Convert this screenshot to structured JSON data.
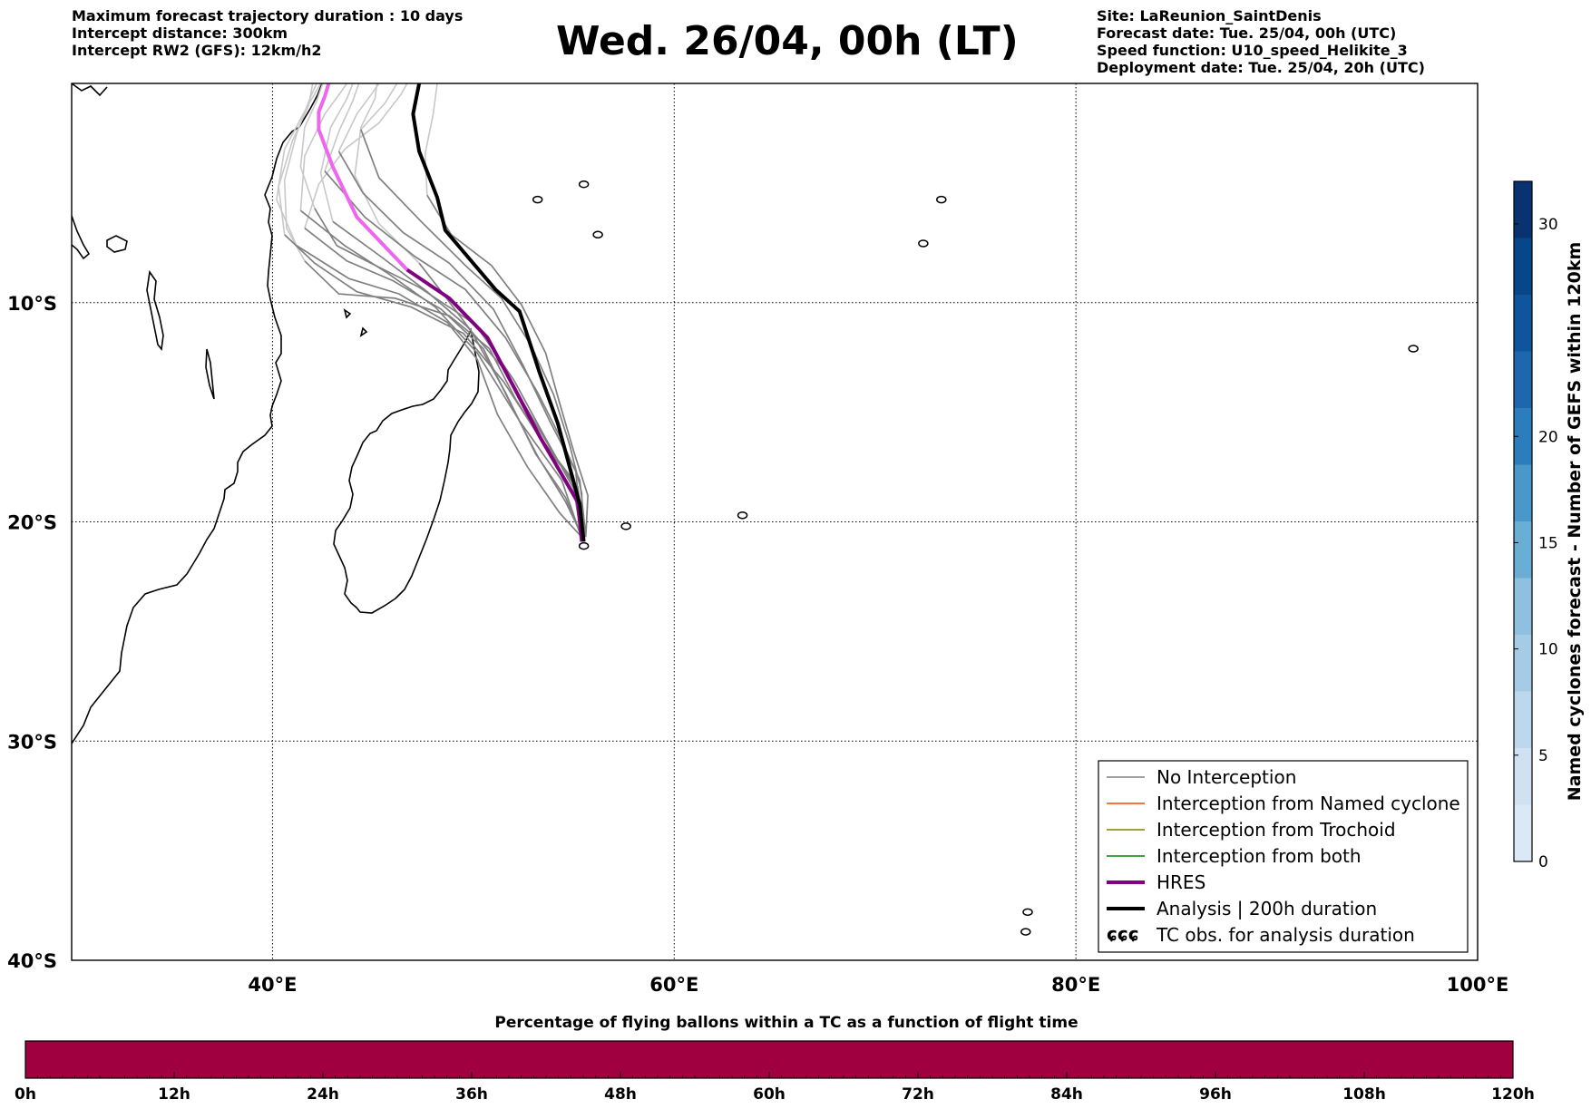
{
  "header": {
    "left_lines": [
      "Maximum forecast trajectory duration : 10 days",
      "Intercept distance: 300km",
      "Intercept RW2 (GFS):  12km/h2"
    ],
    "title": "Wed. 26/04, 00h (LT)",
    "right_lines": [
      "Site: LaReunion_SaintDenis",
      "Forecast date: Tue. 25/04, 00h (UTC)",
      "Speed function: U10_speed_Helikite_3",
      "Deployment date: Tue. 25/04, 20h (UTC)"
    ]
  },
  "map": {
    "lon_range": [
      30,
      100
    ],
    "lat_range": [
      0,
      -40
    ],
    "lon_ticks": [
      {
        "value": 40,
        "label": "40°E"
      },
      {
        "value": 60,
        "label": "60°E"
      },
      {
        "value": 80,
        "label": "80°E"
      },
      {
        "value": 100,
        "label": "100°E"
      }
    ],
    "lat_ticks": [
      {
        "value": -10,
        "label": "10°S"
      },
      {
        "value": -20,
        "label": "20°S"
      },
      {
        "value": -30,
        "label": "30°S"
      },
      {
        "value": -40,
        "label": "40°S"
      }
    ],
    "grid": true,
    "colors": {
      "no_interception": "#808080",
      "ensemble_faded": "#c8c8c8",
      "hres": "#800080",
      "hres_extension": "#ee66ee",
      "analysis": "#000000",
      "interception_named_cyclone": "#ff4500",
      "interception_trochoid": "#808000",
      "interception_both": "#008000"
    },
    "trajectories": {
      "analysis": [
        [
          55.5,
          -20.9
        ],
        [
          55.3,
          -19.2
        ],
        [
          54.2,
          -15.5
        ],
        [
          53.3,
          -13.2
        ],
        [
          52.3,
          -10.4
        ],
        [
          51.1,
          -9.4
        ],
        [
          48.6,
          -6.7
        ],
        [
          48.2,
          -5.2
        ],
        [
          47.3,
          -3.1
        ],
        [
          47.0,
          -1.4
        ],
        [
          47.3,
          0
        ]
      ],
      "hres": [
        [
          55.4,
          -20.9
        ],
        [
          55.2,
          -19.1
        ],
        [
          53.3,
          -16.1
        ],
        [
          52.1,
          -14.0
        ],
        [
          50.7,
          -11.6
        ],
        [
          48.8,
          -9.8
        ],
        [
          46.7,
          -8.5
        ]
      ],
      "hres_extension": [
        [
          46.7,
          -8.5
        ],
        [
          44.2,
          -6.1
        ],
        [
          43.0,
          -3.8
        ],
        [
          42.3,
          -2.1
        ],
        [
          42.3,
          -1.3
        ],
        [
          42.6,
          -0.6
        ],
        [
          42.8,
          0
        ]
      ],
      "ensemble": [
        [
          [
            55.4,
            -20.8
          ],
          [
            55.0,
            -18.5
          ],
          [
            53.6,
            -16.2
          ],
          [
            52.0,
            -13.5
          ],
          [
            50.1,
            -11.0
          ],
          [
            47.3,
            -9.3
          ],
          [
            44.9,
            -8.2
          ],
          [
            43.2,
            -7.4
          ],
          [
            42.1,
            -5.7
          ]
        ],
        [
          [
            55.5,
            -20.6
          ],
          [
            55.2,
            -18.4
          ],
          [
            53.6,
            -16.6
          ],
          [
            52.1,
            -14.4
          ],
          [
            50.8,
            -12.1
          ],
          [
            48.8,
            -10.6
          ],
          [
            46.1,
            -9.8
          ],
          [
            43.3,
            -9.6
          ],
          [
            41.6,
            -8.1
          ]
        ],
        [
          [
            55.4,
            -20.7
          ],
          [
            54.9,
            -18.0
          ],
          [
            53.2,
            -16.0
          ],
          [
            51.5,
            -13.6
          ],
          [
            49.5,
            -11.4
          ],
          [
            46.9,
            -10.2
          ],
          [
            44.2,
            -9.5
          ],
          [
            42.1,
            -8.2
          ],
          [
            40.6,
            -6.9
          ]
        ],
        [
          [
            55.3,
            -20.5
          ],
          [
            54.4,
            -18.1
          ],
          [
            52.3,
            -15.4
          ],
          [
            50.2,
            -12.3
          ],
          [
            48.1,
            -10.2
          ],
          [
            45.8,
            -8.7
          ],
          [
            43.6,
            -7.4
          ],
          [
            41.4,
            -5.8
          ]
        ],
        [
          [
            55.6,
            -20.7
          ],
          [
            55.3,
            -18.1
          ],
          [
            54.3,
            -16.1
          ],
          [
            53.2,
            -14.1
          ],
          [
            51.6,
            -11.6
          ],
          [
            49.6,
            -9.4
          ],
          [
            47.1,
            -7.9
          ],
          [
            44.6,
            -6.1
          ],
          [
            42.6,
            -4.0
          ]
        ],
        [
          [
            55.5,
            -20.8
          ],
          [
            54.3,
            -19.6
          ],
          [
            52.7,
            -17.5
          ],
          [
            51.2,
            -15.1
          ],
          [
            50.2,
            -12.6
          ],
          [
            48.7,
            -10.9
          ],
          [
            46.3,
            -9.6
          ],
          [
            43.8,
            -8.9
          ],
          [
            41.2,
            -7.4
          ]
        ],
        [
          [
            55.4,
            -20.6
          ],
          [
            55.4,
            -18.7
          ],
          [
            54.8,
            -16.5
          ],
          [
            54.0,
            -14.2
          ],
          [
            52.9,
            -12.0
          ],
          [
            51.4,
            -9.8
          ],
          [
            49.6,
            -8.3
          ],
          [
            47.4,
            -6.3
          ],
          [
            45.3,
            -4.3
          ],
          [
            44.4,
            -2.1
          ]
        ],
        [
          [
            55.5,
            -20.5
          ],
          [
            55.0,
            -18.3
          ],
          [
            54.0,
            -16.9
          ],
          [
            52.7,
            -14.9
          ],
          [
            51.5,
            -13.0
          ],
          [
            49.7,
            -11.1
          ],
          [
            47.7,
            -9.5
          ],
          [
            45.4,
            -7.9
          ],
          [
            43.0,
            -6.3
          ]
        ],
        [
          [
            55.4,
            -20.7
          ],
          [
            55.1,
            -17.7
          ],
          [
            53.8,
            -15.4
          ],
          [
            52.5,
            -12.9
          ],
          [
            51.0,
            -10.3
          ],
          [
            48.8,
            -8.2
          ],
          [
            46.5,
            -6.8
          ],
          [
            44.5,
            -5.0
          ],
          [
            43.3,
            -3.1
          ]
        ],
        [
          [
            55.6,
            -20.6
          ],
          [
            55.7,
            -18.8
          ],
          [
            55.0,
            -16.8
          ],
          [
            54.3,
            -14.6
          ],
          [
            53.6,
            -12.3
          ],
          [
            52.4,
            -10.1
          ],
          [
            50.9,
            -8.3
          ],
          [
            48.9,
            -6.9
          ],
          [
            47.7,
            -5.1
          ]
        ],
        [
          [
            55.5,
            -20.8
          ],
          [
            54.6,
            -19.1
          ],
          [
            53.2,
            -17.0
          ],
          [
            51.9,
            -14.7
          ],
          [
            50.5,
            -12.1
          ],
          [
            48.4,
            -10.3
          ],
          [
            46.0,
            -9.0
          ],
          [
            43.7,
            -8.1
          ],
          [
            41.6,
            -6.6
          ]
        ],
        [
          [
            55.4,
            -20.7
          ],
          [
            54.6,
            -18.9
          ],
          [
            53.1,
            -16.9
          ],
          [
            51.6,
            -14.1
          ],
          [
            49.9,
            -11.3
          ],
          [
            48.5,
            -9.6
          ],
          [
            47.3,
            -8.2
          ]
        ]
      ],
      "faded": [
        [
          [
            42.1,
            -5.7
          ],
          [
            41.4,
            -3.8
          ],
          [
            41.6,
            -2.0
          ],
          [
            42.2,
            -0.8
          ],
          [
            42.5,
            0
          ]
        ],
        [
          [
            41.6,
            -8.1
          ],
          [
            40.7,
            -6.6
          ],
          [
            40.6,
            -4.4
          ],
          [
            41.2,
            -2.3
          ],
          [
            41.9,
            -0.6
          ],
          [
            42.2,
            0
          ]
        ],
        [
          [
            40.6,
            -6.9
          ],
          [
            40.3,
            -4.7
          ],
          [
            41.0,
            -2.6
          ],
          [
            41.8,
            -1.0
          ],
          [
            42.0,
            0
          ]
        ],
        [
          [
            41.4,
            -5.8
          ],
          [
            41.6,
            -3.3
          ],
          [
            42.6,
            -1.4
          ],
          [
            43.4,
            -0.4
          ],
          [
            43.7,
            0
          ]
        ],
        [
          [
            42.6,
            -4.0
          ],
          [
            43.3,
            -2.2
          ],
          [
            44.0,
            -0.8
          ],
          [
            44.3,
            0
          ]
        ],
        [
          [
            41.2,
            -7.4
          ],
          [
            40.2,
            -5.3
          ],
          [
            40.6,
            -3.0
          ],
          [
            41.7,
            -1.1
          ],
          [
            42.4,
            0
          ]
        ],
        [
          [
            44.4,
            -2.1
          ],
          [
            45.6,
            -0.9
          ],
          [
            46.2,
            0
          ]
        ],
        [
          [
            43.0,
            -6.3
          ],
          [
            42.4,
            -4.1
          ],
          [
            42.9,
            -2.0
          ],
          [
            43.7,
            -0.7
          ],
          [
            44.0,
            0
          ]
        ],
        [
          [
            43.3,
            -3.1
          ],
          [
            44.2,
            -1.4
          ],
          [
            45.0,
            -0.4
          ],
          [
            45.3,
            0
          ]
        ],
        [
          [
            47.7,
            -5.1
          ],
          [
            47.6,
            -3.2
          ],
          [
            48.0,
            -1.4
          ],
          [
            48.2,
            0
          ]
        ],
        [
          [
            41.6,
            -6.6
          ],
          [
            42.3,
            -4.6
          ],
          [
            43.6,
            -3.0
          ],
          [
            45.3,
            -1.8
          ],
          [
            46.4,
            -0.5
          ],
          [
            46.7,
            0
          ]
        ],
        [
          [
            47.3,
            -8.2
          ],
          [
            45.3,
            -6.4
          ],
          [
            44.1,
            -4.2
          ],
          [
            44.4,
            -2.0
          ],
          [
            45.1,
            -0.7
          ],
          [
            45.2,
            0
          ]
        ]
      ]
    },
    "islands": [
      [
        55.5,
        -21.1
      ],
      [
        57.6,
        -20.2
      ],
      [
        63.4,
        -19.7
      ],
      [
        73.3,
        -5.3
      ],
      [
        72.4,
        -7.3
      ],
      [
        77.6,
        -37.8
      ],
      [
        77.5,
        -38.7
      ],
      [
        96.8,
        -12.1
      ],
      [
        53.2,
        -5.3
      ],
      [
        55.5,
        -4.6
      ],
      [
        56.2,
        -6.9
      ]
    ]
  },
  "legend": {
    "items": [
      {
        "label": "No Interception",
        "style": "thin",
        "color": "#808080"
      },
      {
        "label": "Interception from Named cyclone",
        "style": "thin",
        "color": "#ff4500"
      },
      {
        "label": "Interception from Trochoid",
        "style": "thin",
        "color": "#808000"
      },
      {
        "label": "Interception from both",
        "style": "thin",
        "color": "#008000"
      },
      {
        "label": "HRES",
        "style": "thick",
        "color": "#800080"
      },
      {
        "label": "Analysis | 200h duration",
        "style": "thick",
        "color": "#000000"
      },
      {
        "label": "TC obs. for analysis duration",
        "style": "symbol",
        "symbol": "ɕɕɕ"
      }
    ]
  },
  "colorbar_right": {
    "label": "Named cyclones forecast - Number of GEFS within 120km",
    "min": 0,
    "max": 32,
    "ticks": [
      0,
      5,
      10,
      15,
      20,
      30
    ],
    "colors": [
      "#dbe8f6",
      "#d0e1f2",
      "#bdd7ec",
      "#a5cce4",
      "#8fc0df",
      "#6aaed6",
      "#4a97c9",
      "#2c7dbb",
      "#1f67ad",
      "#0f559c",
      "#08468a",
      "#083370"
    ]
  },
  "colorbar_bottom": {
    "title": "Percentage of flying ballons within a TC as a function of flight time",
    "color": "#a00040",
    "tick_labels": [
      "0h",
      "12h",
      "24h",
      "36h",
      "48h",
      "60h",
      "72h",
      "84h",
      "96h",
      "108h",
      "120h"
    ]
  }
}
